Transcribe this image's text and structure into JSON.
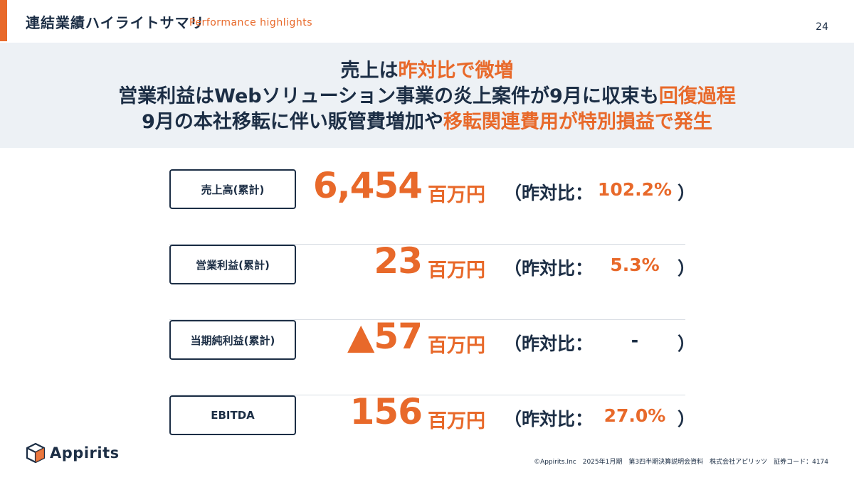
{
  "header": {
    "title": "連結業績ハイライトサマリ",
    "subtitle": "Performance highlights",
    "page_number": "24"
  },
  "banner": {
    "line1": {
      "a": "売上は",
      "b": "昨対比で微増"
    },
    "line2": {
      "a": "営業利益はWebソリューション事業の炎上案件が9月に収束も",
      "b": "回復過程"
    },
    "line3": {
      "a": "9月の本社移転に伴い販管費増加や",
      "b": "移転関連費用が特別損益で発生"
    }
  },
  "metrics": [
    {
      "label": "売上高(累計)",
      "value": "6,454",
      "unit": "百万円",
      "yoy_label": "（昨対比：",
      "yoy_value": "102.2%",
      "close": "）"
    },
    {
      "label": "営業利益(累計)",
      "value": "23",
      "unit": "百万円",
      "yoy_label": "（昨対比：",
      "yoy_value": "5.3%",
      "close": "）"
    },
    {
      "label": "当期純利益(累計)",
      "value": "▲57",
      "unit": "百万円",
      "yoy_label": "（昨対比：",
      "yoy_value": "-",
      "close": "）"
    },
    {
      "label": "EBITDA",
      "value": "156",
      "unit": "百万円",
      "yoy_label": "（昨対比：",
      "yoy_value": "27.0%",
      "close": "）"
    }
  ],
  "logo": {
    "text": "Appirits",
    "icon": "cube-logo-icon"
  },
  "footer": {
    "text": "©Appirits.Inc　2025年1月期　第3四半期決算説明会資料　株式会社アピリッツ　証券コード：4174"
  },
  "colors": {
    "accent": "#e8692a",
    "navy": "#1c2e45",
    "banner_bg": "#edf1f5"
  }
}
